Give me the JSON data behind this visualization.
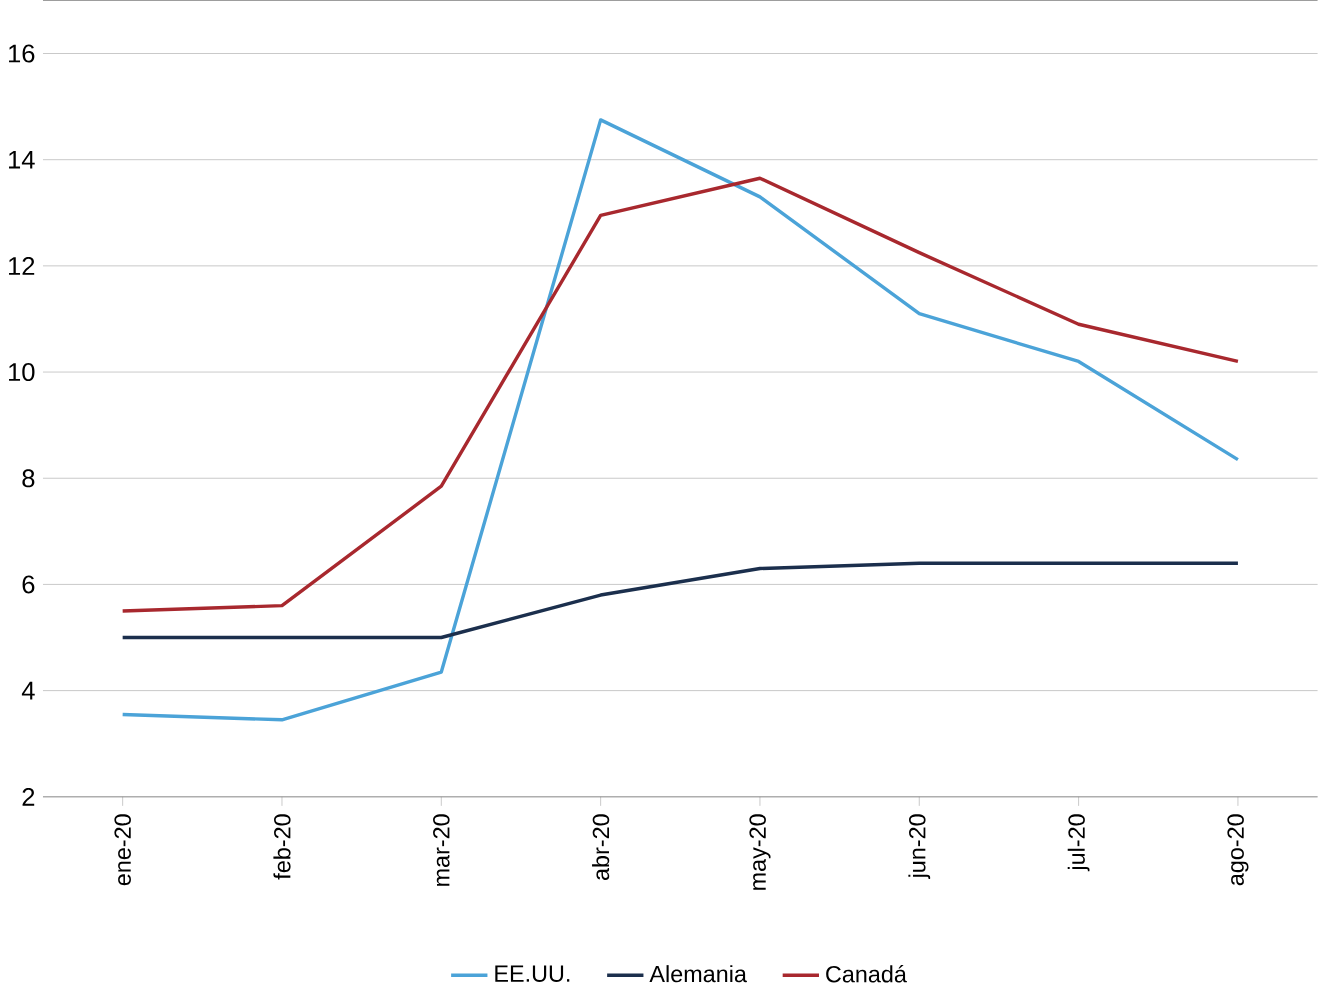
{
  "chart_data": {
    "type": "line",
    "categories": [
      "ene-20",
      "feb-20",
      "mar-20",
      "abr-20",
      "may-20",
      "jun-20",
      "jul-20",
      "ago-20"
    ],
    "series": [
      {
        "name": "EE.UU.",
        "color": "#4ba3d8",
        "values": [
          3.55,
          3.45,
          4.35,
          14.75,
          13.3,
          11.1,
          10.2,
          8.35
        ]
      },
      {
        "name": "Alemania",
        "color": "#1b2f4d",
        "values": [
          5.0,
          5.0,
          5.0,
          5.8,
          6.3,
          6.4,
          6.4,
          6.4
        ]
      },
      {
        "name": "Canadá",
        "color": "#a8282e",
        "values": [
          5.5,
          5.6,
          7.85,
          12.95,
          13.65,
          12.25,
          10.9,
          10.2
        ]
      }
    ],
    "ylim": [
      2,
      17
    ],
    "yticks": [
      2,
      4,
      6,
      8,
      10,
      12,
      14,
      16
    ],
    "grid": "y",
    "legend": "bottom",
    "line_style": "solid",
    "marker": "none"
  }
}
